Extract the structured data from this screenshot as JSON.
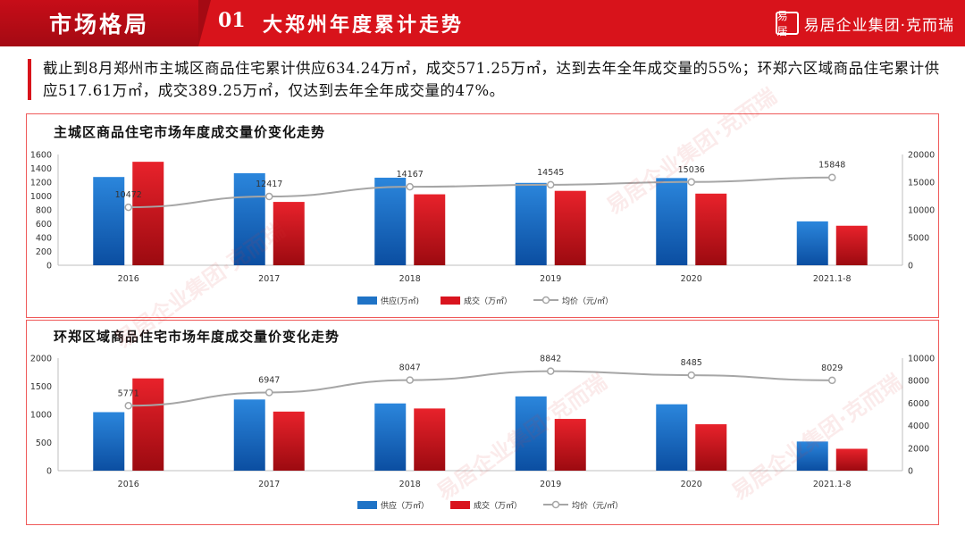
{
  "header": {
    "section_label": "市场格局",
    "section_number": "01",
    "section_title": "大郑州年度累计走势",
    "brand": "易居企业集团·克而瑞",
    "brand_mark": "易居"
  },
  "summary": "截止到8月郑州市主城区商品住宅累计供应634.24万㎡，成交571.25万㎡，达到去年全年成交量的55%；环郑六区域商品住宅累计供应517.61万㎡，成交389.25万㎡，仅达到去年全年成交量的47%。",
  "colors": {
    "accent": "#d8131b",
    "supply": "#1f73c6",
    "deal": "#d9141e",
    "price": "#a6a6a6"
  },
  "chart_data": [
    {
      "type": "bar",
      "title": "主城区商品住宅市场年度成交量价变化走势",
      "categories": [
        "2016",
        "2017",
        "2018",
        "2019",
        "2020",
        "2021.1-8"
      ],
      "series": [
        {
          "name": "供应(万㎡)",
          "type": "bar",
          "axis": "left",
          "values": [
            1275,
            1330,
            1265,
            1190,
            1260,
            634
          ]
        },
        {
          "name": "成交（万㎡）",
          "type": "bar",
          "axis": "left",
          "values": [
            1495,
            915,
            1025,
            1075,
            1035,
            571
          ]
        },
        {
          "name": "均价（元/㎡）",
          "type": "line",
          "axis": "right",
          "values": [
            10472,
            12417,
            14167,
            14545,
            15036,
            15848
          ]
        }
      ],
      "left_axis": {
        "min": 0,
        "max": 1600,
        "ticks": [
          0,
          200,
          400,
          600,
          800,
          1000,
          1200,
          1400,
          1600
        ]
      },
      "right_axis": {
        "min": 0,
        "max": 20000,
        "ticks": [
          0,
          5000,
          10000,
          15000,
          20000
        ]
      },
      "legend": "bottom"
    },
    {
      "type": "bar",
      "title": "环郑区域商品住宅市场年度成交量价变化走势",
      "categories": [
        "2016",
        "2017",
        "2018",
        "2019",
        "2020",
        "2021.1-8"
      ],
      "series": [
        {
          "name": "供应（万㎡）",
          "type": "bar",
          "axis": "left",
          "values": [
            1040,
            1265,
            1195,
            1320,
            1180,
            518
          ]
        },
        {
          "name": "成交（万㎡）",
          "type": "bar",
          "axis": "left",
          "values": [
            1640,
            1050,
            1105,
            920,
            825,
            389
          ]
        },
        {
          "name": "均价（元/㎡）",
          "type": "line",
          "axis": "right",
          "values": [
            5771,
            6947,
            8047,
            8842,
            8485,
            8029
          ]
        }
      ],
      "left_axis": {
        "min": 0,
        "max": 2000,
        "ticks": [
          0,
          500,
          1000,
          1500,
          2000
        ]
      },
      "right_axis": {
        "min": 0,
        "max": 10000,
        "ticks": [
          0,
          2000,
          4000,
          6000,
          8000,
          10000
        ]
      },
      "legend": "bottom"
    }
  ]
}
